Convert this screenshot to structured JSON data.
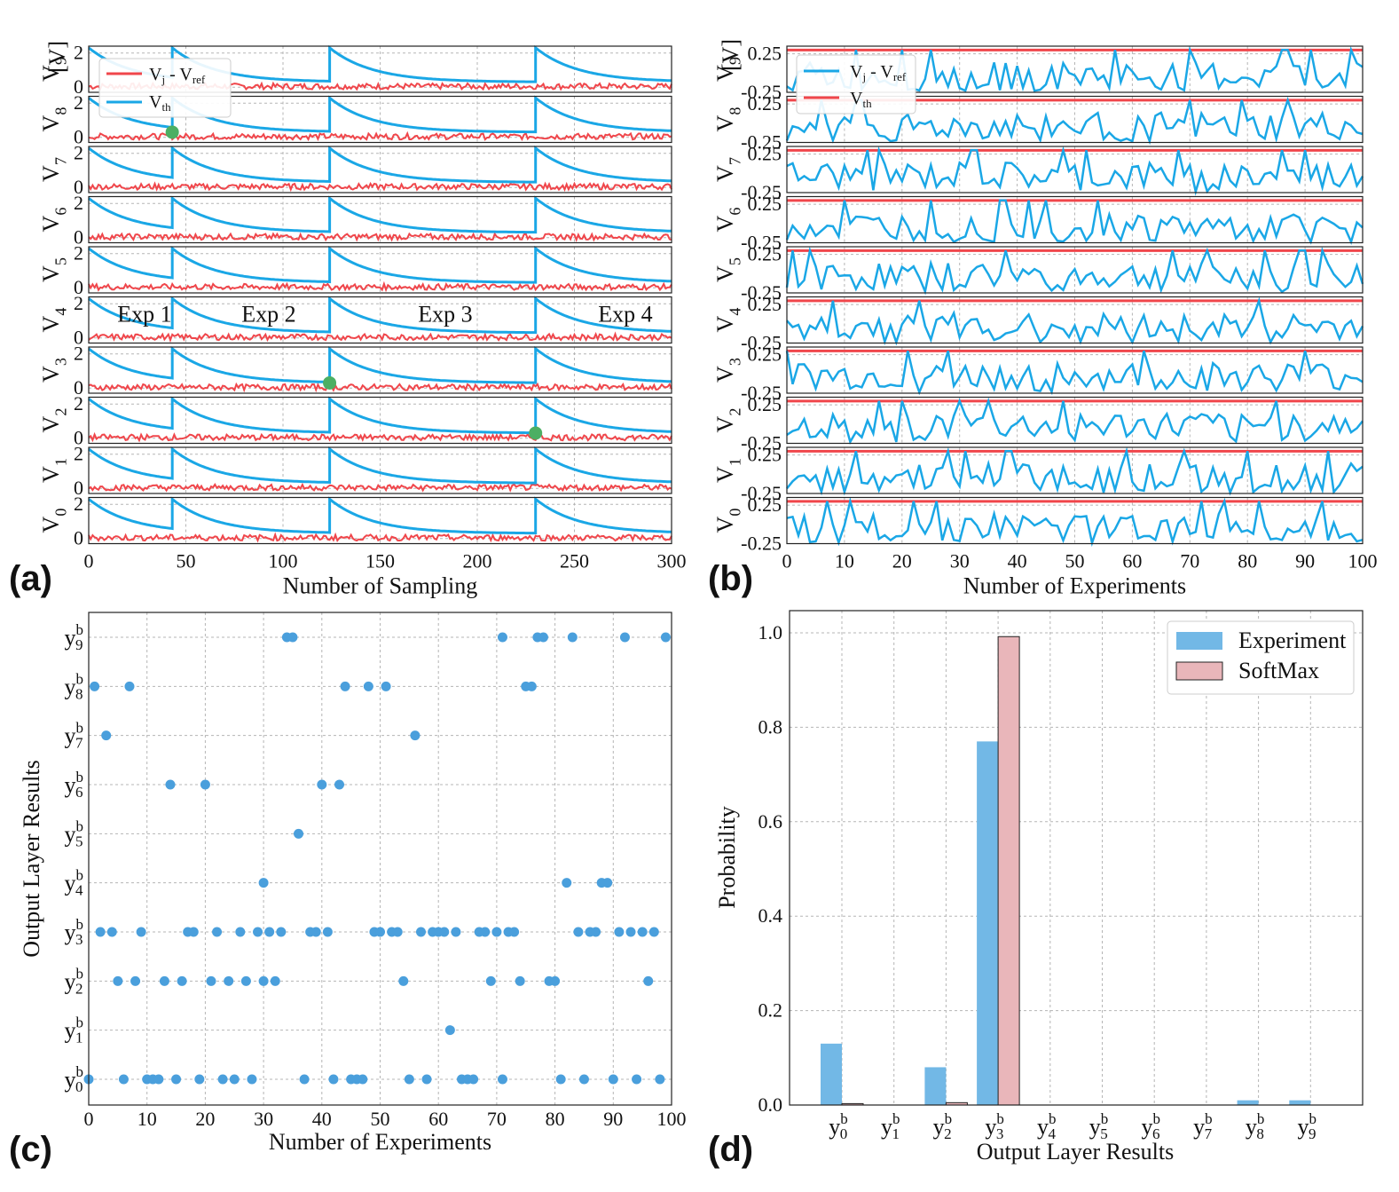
{
  "colors": {
    "blue": "#1aa7e6",
    "red": "#f0464b",
    "green": "#4caf63",
    "dot": "#4a9fdc",
    "bar_exp": "#72b8e6",
    "bar_soft": "#e9b6ba"
  },
  "panels": {
    "a": {
      "label": "(a)",
      "xlabel": "Number of Sampling",
      "xticks": [
        "0",
        "50",
        "100",
        "150",
        "200",
        "250",
        "300"
      ],
      "yticks": [
        "0",
        "2"
      ],
      "ylabels": [
        "V0",
        "V1",
        "V2",
        "V3",
        "V4",
        "V5",
        "V6",
        "V7",
        "V8",
        "V9"
      ],
      "top_ylabel_unit": "[V]",
      "legend": [
        "Vj - Vref",
        "Vth"
      ],
      "exp_labels": [
        "Exp 1",
        "Exp 2",
        "Exp 3",
        "Exp 4"
      ]
    },
    "b": {
      "label": "(b)",
      "xlabel": "Number of Experiments",
      "xticks": [
        "0",
        "10",
        "20",
        "30",
        "40",
        "50",
        "60",
        "70",
        "80",
        "90",
        "100"
      ],
      "yticks": [
        "-0.25",
        "0.25"
      ],
      "ylabels": [
        "V0",
        "V1",
        "V2",
        "V3",
        "V4",
        "V5",
        "V6",
        "V7",
        "V8",
        "V9"
      ],
      "top_ylabel_unit": "[V]",
      "legend": [
        "Vj - Vref",
        "Vth"
      ]
    },
    "c": {
      "label": "(c)",
      "xlabel": "Number of Experiments",
      "ylabel": "Output Layer Results",
      "xticks": [
        "0",
        "10",
        "20",
        "30",
        "40",
        "50",
        "60",
        "70",
        "80",
        "90",
        "100"
      ],
      "yticks": [
        "y0",
        "y1",
        "y2",
        "y3",
        "y4",
        "y5",
        "y6",
        "y7",
        "y8",
        "y9"
      ]
    },
    "d": {
      "label": "(d)",
      "xlabel": "Output Layer Results",
      "ylabel": "Probability",
      "yticks": [
        "0.0",
        "0.2",
        "0.4",
        "0.6",
        "0.8",
        "1.0"
      ],
      "xticks": [
        "y0",
        "y1",
        "y2",
        "y3",
        "y4",
        "y5",
        "y6",
        "y7",
        "y8",
        "y9"
      ],
      "legend": [
        "Experiment",
        "SoftMax"
      ]
    }
  },
  "chart_data": [
    {
      "type": "line",
      "panel": "a",
      "title": "",
      "xlabel": "Number of Sampling",
      "ylabel": "V",
      "xlim": [
        0,
        300
      ],
      "ylim": [
        -0.3,
        2.4
      ],
      "series": [
        {
          "name": "Vth",
          "description": "threshold resets to 2.3 V at each experiment start then decays exponentially toward ~0.3 V",
          "reset_samples": [
            0,
            43,
            124,
            230
          ]
        },
        {
          "name": "Vj - Vref",
          "description": "noisy signal around 0 V for every neuron V0..V9"
        }
      ],
      "spike_markers": [
        {
          "neuron": "V8",
          "sample": 43,
          "value": 0.3
        },
        {
          "neuron": "V3",
          "sample": 124,
          "value": 0.3
        },
        {
          "neuron": "V2",
          "sample": 230,
          "value": 0.3
        }
      ]
    },
    {
      "type": "line",
      "panel": "b",
      "xlabel": "Number of Experiments",
      "xlim": [
        0,
        100
      ],
      "ylim": [
        -0.25,
        0.35
      ],
      "series": [
        {
          "name": "Vth",
          "value": 0.3
        },
        {
          "name": "Vj - Vref",
          "description": "fluctuating values between -0.25 and 0.3 for each neuron V0..V9"
        }
      ]
    },
    {
      "type": "scatter",
      "panel": "c",
      "xlabel": "Number of Experiments",
      "ylabel": "Output Layer Results",
      "xlim": [
        0,
        100
      ],
      "points": [
        [
          0,
          0
        ],
        [
          1,
          8
        ],
        [
          2,
          3
        ],
        [
          3,
          7
        ],
        [
          4,
          3
        ],
        [
          5,
          2
        ],
        [
          6,
          0
        ],
        [
          7,
          8
        ],
        [
          8,
          2
        ],
        [
          9,
          3
        ],
        [
          10,
          0
        ],
        [
          11,
          0
        ],
        [
          12,
          0
        ],
        [
          13,
          2
        ],
        [
          14,
          6
        ],
        [
          15,
          0
        ],
        [
          16,
          2
        ],
        [
          17,
          3
        ],
        [
          18,
          3
        ],
        [
          19,
          0
        ],
        [
          20,
          6
        ],
        [
          21,
          2
        ],
        [
          22,
          3
        ],
        [
          23,
          0
        ],
        [
          24,
          2
        ],
        [
          25,
          0
        ],
        [
          26,
          3
        ],
        [
          27,
          2
        ],
        [
          28,
          0
        ],
        [
          29,
          3
        ],
        [
          30,
          2
        ],
        [
          30,
          4
        ],
        [
          31,
          3
        ],
        [
          32,
          2
        ],
        [
          33,
          3
        ],
        [
          34,
          9
        ],
        [
          35,
          9
        ],
        [
          36,
          5
        ],
        [
          37,
          0
        ],
        [
          38,
          3
        ],
        [
          39,
          3
        ],
        [
          40,
          6
        ],
        [
          41,
          3
        ],
        [
          42,
          0
        ],
        [
          43,
          6
        ],
        [
          44,
          8
        ],
        [
          45,
          0
        ],
        [
          46,
          0
        ],
        [
          47,
          0
        ],
        [
          48,
          8
        ],
        [
          49,
          3
        ],
        [
          50,
          3
        ],
        [
          51,
          8
        ],
        [
          52,
          3
        ],
        [
          53,
          3
        ],
        [
          54,
          2
        ],
        [
          55,
          0
        ],
        [
          56,
          7
        ],
        [
          57,
          3
        ],
        [
          58,
          0
        ],
        [
          59,
          3
        ],
        [
          60,
          3
        ],
        [
          61,
          3
        ],
        [
          62,
          1
        ],
        [
          63,
          3
        ],
        [
          64,
          0
        ],
        [
          65,
          0
        ],
        [
          66,
          0
        ],
        [
          67,
          3
        ],
        [
          68,
          3
        ],
        [
          69,
          2
        ],
        [
          70,
          3
        ],
        [
          71,
          0
        ],
        [
          71,
          9
        ],
        [
          72,
          3
        ],
        [
          73,
          3
        ],
        [
          74,
          2
        ],
        [
          75,
          8
        ],
        [
          76,
          8
        ],
        [
          77,
          9
        ],
        [
          78,
          9
        ],
        [
          79,
          2
        ],
        [
          80,
          2
        ],
        [
          81,
          0
        ],
        [
          82,
          4
        ],
        [
          83,
          9
        ],
        [
          84,
          3
        ],
        [
          85,
          0
        ],
        [
          86,
          3
        ],
        [
          87,
          3
        ],
        [
          88,
          4
        ],
        [
          89,
          4
        ],
        [
          90,
          0
        ],
        [
          91,
          3
        ],
        [
          92,
          9
        ],
        [
          93,
          3
        ],
        [
          94,
          0
        ],
        [
          95,
          3
        ],
        [
          96,
          2
        ],
        [
          97,
          3
        ],
        [
          98,
          0
        ],
        [
          99,
          9
        ]
      ]
    },
    {
      "type": "bar",
      "panel": "d",
      "xlabel": "Output Layer Results",
      "ylabel": "Probability",
      "ylim": [
        0,
        1.05
      ],
      "categories": [
        "y0",
        "y1",
        "y2",
        "y3",
        "y4",
        "y5",
        "y6",
        "y7",
        "y8",
        "y9"
      ],
      "series": [
        {
          "name": "Experiment",
          "values": [
            0.13,
            0.0,
            0.08,
            0.77,
            0.0,
            0.0,
            0.0,
            0.0,
            0.01,
            0.01
          ]
        },
        {
          "name": "SoftMax",
          "values": [
            0.003,
            0.0,
            0.005,
            0.992,
            0.0,
            0.0,
            0.0,
            0.0,
            0.0,
            0.0
          ]
        }
      ]
    }
  ]
}
